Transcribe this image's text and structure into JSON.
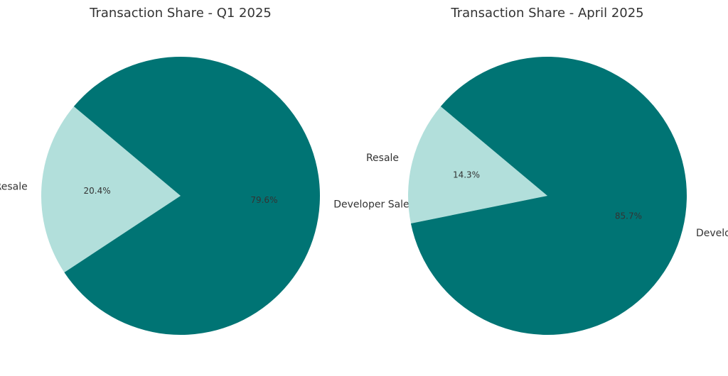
{
  "chart_data": [
    {
      "type": "pie",
      "title": "Transaction Share - Q1 2025",
      "slices": [
        {
          "label": "Resale",
          "value": 20.4,
          "pct_label": "20.4%",
          "color": "#b2dfdb"
        },
        {
          "label": "Developer Sale",
          "value": 79.6,
          "pct_label": "79.6%",
          "color": "#007474"
        }
      ]
    },
    {
      "type": "pie",
      "title": "Transaction Share - April 2025",
      "slices": [
        {
          "label": "Resale",
          "value": 14.3,
          "pct_label": "14.3%",
          "color": "#b2dfdb"
        },
        {
          "label": "Developer Sale",
          "value": 85.7,
          "pct_label": "85.7%",
          "color": "#007474"
        }
      ]
    }
  ]
}
